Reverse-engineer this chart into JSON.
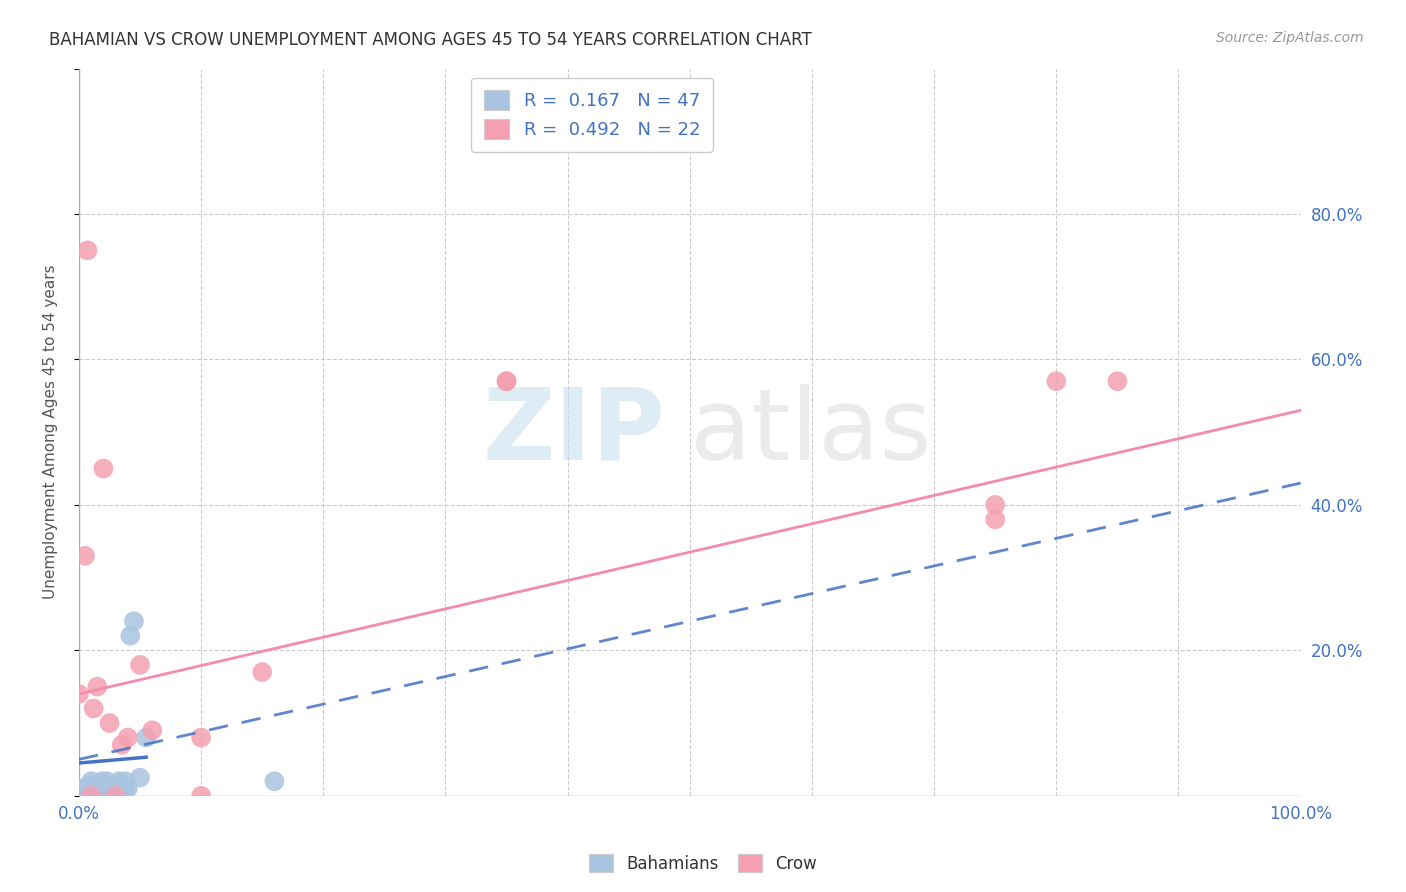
{
  "title": "BAHAMIAN VS CROW UNEMPLOYMENT AMONG AGES 45 TO 54 YEARS CORRELATION CHART",
  "source": "Source: ZipAtlas.com",
  "ylabel": "Unemployment Among Ages 45 to 54 years",
  "xlim": [
    0,
    1.0
  ],
  "ylim": [
    0,
    1.0
  ],
  "xticks": [
    0.0,
    0.1,
    0.2,
    0.3,
    0.4,
    0.5,
    0.6,
    0.7,
    0.8,
    0.9,
    1.0
  ],
  "xticklabels": [
    "0.0%",
    "",
    "",
    "",
    "",
    "",
    "",
    "",
    "",
    "",
    "100.0%"
  ],
  "yticks": [
    0.0,
    0.2,
    0.4,
    0.6,
    0.8,
    1.0
  ],
  "yticklabels": [
    "",
    "20.0%",
    "40.0%",
    "60.0%",
    "80.0%",
    ""
  ],
  "bahamian_color": "#a8c4e0",
  "crow_color": "#f4a0b0",
  "bahamian_line_color": "#4472c4",
  "crow_line_color": "#f48ab0",
  "legend_r1": "R =  0.167",
  "legend_n1": "N = 47",
  "legend_r2": "R =  0.492",
  "legend_n2": "N = 22",
  "bahamian_x": [
    0.0,
    0.0,
    0.002,
    0.003,
    0.004,
    0.005,
    0.005,
    0.006,
    0.007,
    0.008,
    0.008,
    0.009,
    0.01,
    0.01,
    0.01,
    0.012,
    0.013,
    0.014,
    0.015,
    0.015,
    0.016,
    0.017,
    0.018,
    0.019,
    0.02,
    0.02,
    0.021,
    0.022,
    0.023,
    0.025,
    0.026,
    0.027,
    0.028,
    0.03,
    0.031,
    0.032,
    0.033,
    0.035,
    0.036,
    0.037,
    0.038,
    0.04,
    0.042,
    0.045,
    0.05,
    0.055,
    0.16
  ],
  "bahamian_y": [
    0.0,
    0.01,
    0.0,
    0.005,
    0.0,
    0.0,
    0.01,
    0.0,
    0.005,
    0.0,
    0.01,
    0.015,
    0.0,
    0.005,
    0.02,
    0.01,
    0.0,
    0.005,
    0.0,
    0.01,
    0.0,
    0.005,
    0.01,
    0.02,
    0.0,
    0.01,
    0.005,
    0.01,
    0.02,
    0.01,
    0.0,
    0.005,
    0.01,
    0.0,
    0.005,
    0.01,
    0.02,
    0.01,
    0.0,
    0.005,
    0.02,
    0.01,
    0.22,
    0.24,
    0.025,
    0.08,
    0.02
  ],
  "crow_x": [
    0.0,
    0.005,
    0.007,
    0.01,
    0.012,
    0.015,
    0.02,
    0.025,
    0.03,
    0.035,
    0.04,
    0.05,
    0.06,
    0.1,
    0.1,
    0.15,
    0.35,
    0.35,
    0.75,
    0.75,
    0.8,
    0.85
  ],
  "crow_y": [
    0.14,
    0.33,
    0.75,
    0.0,
    0.12,
    0.15,
    0.45,
    0.1,
    0.0,
    0.07,
    0.08,
    0.18,
    0.09,
    0.0,
    0.08,
    0.17,
    0.57,
    0.57,
    0.38,
    0.4,
    0.57,
    0.57
  ],
  "bah_reg": [
    0.0,
    1.0,
    0.05,
    0.43
  ],
  "crow_reg": [
    0.0,
    1.0,
    0.14,
    0.53
  ]
}
